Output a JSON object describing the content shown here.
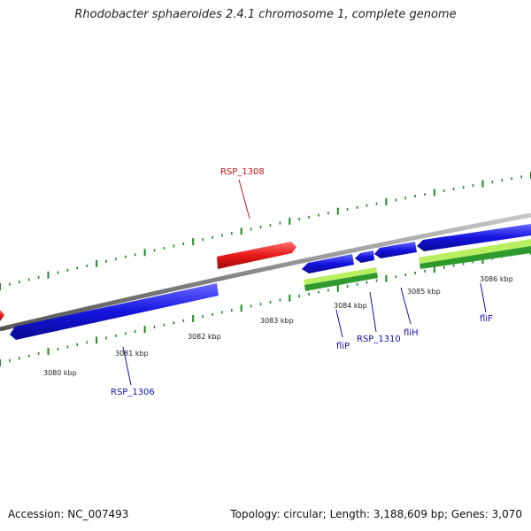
{
  "title": "Rhodobacter sphaeroides 2.4.1 chromosome 1, complete genome",
  "footer": {
    "accession": "Accession: NC_007493",
    "summary": "Topology: circular; Length: 3,188,609 bp; Genes: 3,070"
  },
  "colors": {
    "forward_gene": "#e81818",
    "reverse_gene": "#1414e0",
    "backbone": "#8a8a8a",
    "ticks": "#1e8a1e",
    "feature_light": "#b8f060",
    "feature_dark": "#2e9a2e",
    "label_forward": "#cc1111",
    "label_reverse": "#1111aa",
    "scale_label": "#222222"
  },
  "scale_labels": [
    "3080 kbp",
    "3081 kbp",
    "3082 kbp",
    "3083 kbp",
    "3084 kbp",
    "3085 kbp",
    "3086 kbp"
  ],
  "gene_labels": {
    "rsp_1308": "RSP_1308",
    "rsp_1306": "RSP_1306",
    "flip": "fliP",
    "rsp_1310": "RSP_1310",
    "flih": "fliH",
    "flif": "fliF"
  }
}
